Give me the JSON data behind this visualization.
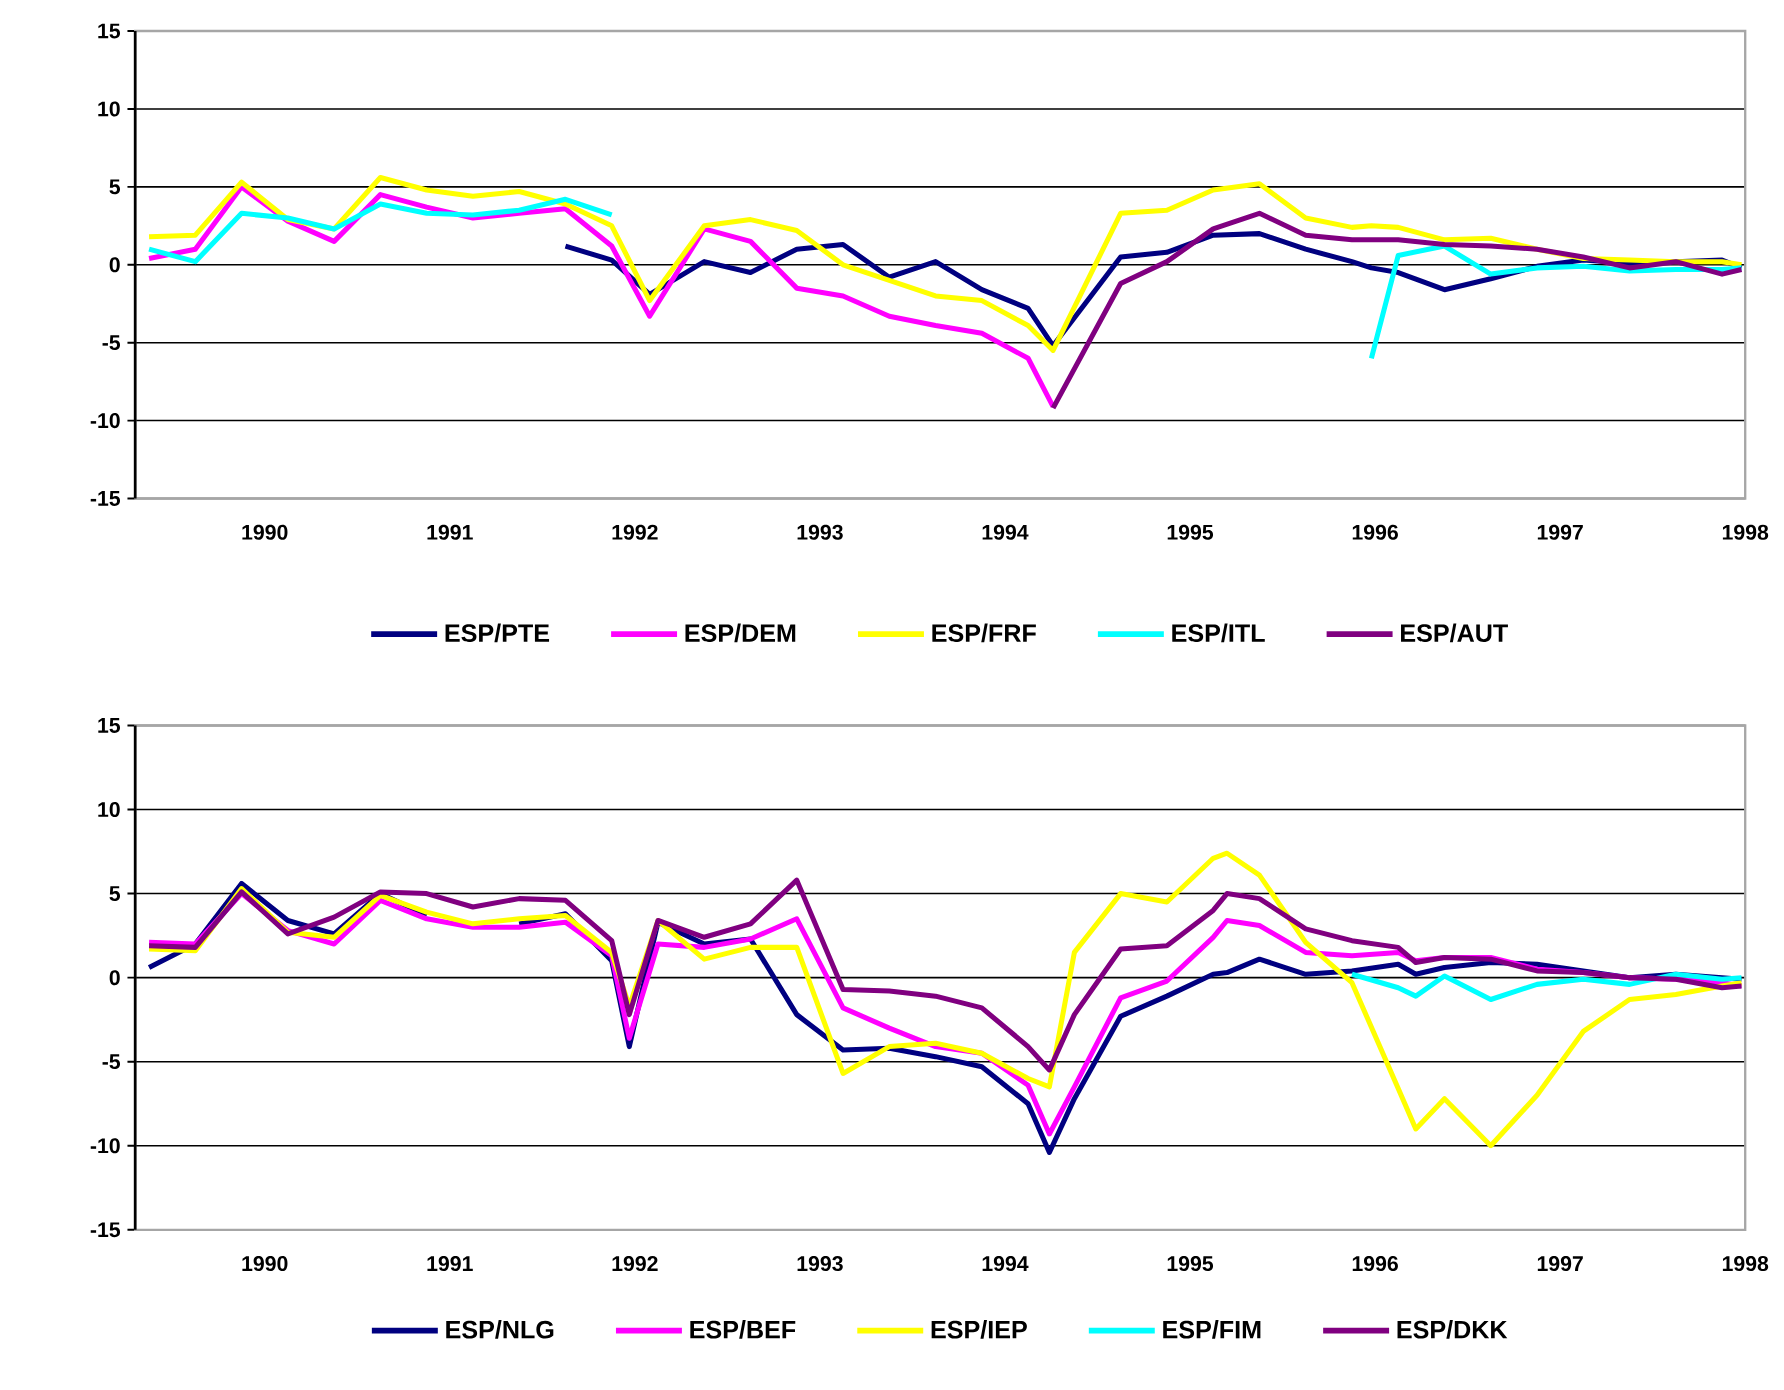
{
  "chart_data": [
    {
      "type": "line",
      "x": [
        1989.375,
        1989.625,
        1989.875,
        1990.125,
        1990.375,
        1990.625,
        1990.875,
        1991.125,
        1991.375,
        1991.625,
        1991.875,
        1992.08,
        1992.375,
        1992.625,
        1992.875,
        1993.125,
        1993.375,
        1993.625,
        1993.875,
        1994.125,
        1994.26,
        1994.625,
        1994.875,
        1995.125,
        1995.375,
        1995.625,
        1995.875,
        1995.98,
        1996.125,
        1996.375,
        1996.625,
        1996.875,
        1997.125,
        1997.375,
        1997.625,
        1997.875,
        1997.98
      ],
      "xlim": [
        1989.3,
        1998.0
      ],
      "ylim": [
        -15,
        15
      ],
      "xticks": [
        1990,
        1991,
        1992,
        1993,
        1994,
        1995,
        1996,
        1997,
        1998
      ],
      "yticks": [
        -15,
        -10,
        -5,
        0,
        5,
        10,
        15
      ],
      "grid": "y",
      "legend": "bottom",
      "series": [
        {
          "name": "ESP/PTE",
          "color": "#000080",
          "values": [
            null,
            null,
            null,
            null,
            null,
            null,
            null,
            null,
            null,
            1.2,
            0.3,
            -1.9,
            0.2,
            -0.5,
            1.0,
            1.3,
            -0.8,
            0.2,
            -1.6,
            -2.8,
            -5.2,
            0.5,
            0.8,
            1.9,
            2.0,
            1.0,
            0.2,
            -0.2,
            -0.5,
            -1.6,
            -0.9,
            -0.1,
            0.3,
            0.1,
            0.2,
            0.3,
            -0.2
          ]
        },
        {
          "name": "ESP/DEM",
          "color": "#ff00ff",
          "values": [
            0.4,
            1.0,
            5.0,
            2.8,
            1.5,
            4.5,
            3.7,
            3.0,
            3.3,
            3.6,
            1.2,
            -3.3,
            2.3,
            1.5,
            -1.5,
            -2.0,
            -3.3,
            -3.9,
            -4.4,
            -6.0,
            -9.1,
            null,
            null,
            null,
            null,
            null,
            null,
            null,
            null,
            null,
            null,
            null,
            null,
            null,
            null,
            null,
            null
          ]
        },
        {
          "name": "ESP/FRF",
          "color": "#ffff00",
          "values": [
            1.8,
            1.9,
            5.3,
            2.9,
            2.3,
            5.6,
            4.8,
            4.4,
            4.7,
            3.9,
            2.5,
            -2.3,
            2.5,
            2.9,
            2.2,
            0.0,
            -1.0,
            -2.0,
            -2.3,
            -3.9,
            -5.5,
            3.3,
            3.5,
            4.8,
            5.2,
            3.0,
            2.4,
            2.5,
            2.4,
            1.6,
            1.7,
            1.0,
            0.4,
            0.3,
            0.2,
            0.2,
            0.0
          ]
        },
        {
          "name": "ESP/ITL",
          "color": "#00ffff",
          "values": [
            1.0,
            0.2,
            3.3,
            3.0,
            2.3,
            3.9,
            3.3,
            3.2,
            3.5,
            4.2,
            3.2,
            null,
            null,
            null,
            null,
            null,
            null,
            null,
            null,
            null,
            null,
            null,
            null,
            null,
            null,
            null,
            null,
            -6.0,
            0.6,
            1.2,
            -0.6,
            -0.2,
            -0.1,
            -0.4,
            -0.3,
            -0.3,
            -0.2
          ]
        },
        {
          "name": "ESP/AUT",
          "color": "#800080",
          "values": [
            null,
            null,
            null,
            null,
            null,
            null,
            null,
            null,
            null,
            null,
            null,
            null,
            null,
            null,
            null,
            null,
            null,
            null,
            null,
            null,
            -9.2,
            -1.2,
            0.2,
            2.3,
            3.3,
            1.9,
            1.6,
            1.6,
            1.6,
            1.3,
            1.2,
            1.0,
            0.5,
            -0.2,
            0.2,
            -0.6,
            -0.3
          ]
        }
      ]
    },
    {
      "type": "line",
      "x": [
        1989.375,
        1989.625,
        1989.875,
        1990.125,
        1990.375,
        1990.625,
        1990.875,
        1991.125,
        1991.375,
        1991.625,
        1991.875,
        1991.97,
        1992.125,
        1992.375,
        1992.625,
        1992.875,
        1993.125,
        1993.375,
        1993.625,
        1993.875,
        1994.125,
        1994.24,
        1994.375,
        1994.625,
        1994.875,
        1995.125,
        1995.2,
        1995.375,
        1995.625,
        1995.875,
        1996.125,
        1996.22,
        1996.375,
        1996.625,
        1996.875,
        1997.125,
        1997.375,
        1997.625,
        1997.875,
        1997.98
      ],
      "xlim": [
        1989.3,
        1998.0
      ],
      "ylim": [
        -15,
        15
      ],
      "xticks": [
        1990,
        1991,
        1992,
        1993,
        1994,
        1995,
        1996,
        1997,
        1998
      ],
      "yticks": [
        -15,
        -10,
        -5,
        0,
        5,
        10,
        15
      ],
      "grid": "y",
      "legend": "bottom",
      "series": [
        {
          "name": "ESP/NLG",
          "color": "#000080",
          "values": [
            0.6,
            2.0,
            5.6,
            3.4,
            2.6,
            5.0,
            3.7,
            null,
            3.2,
            3.8,
            1.0,
            -4.1,
            3.3,
            2.0,
            2.3,
            -2.2,
            -4.3,
            -4.2,
            -4.7,
            -5.3,
            -7.5,
            -10.4,
            -7.2,
            -2.3,
            -1.1,
            0.2,
            0.3,
            1.1,
            0.2,
            0.4,
            0.8,
            0.2,
            0.6,
            0.9,
            0.8,
            0.4,
            0.0,
            0.2,
            0.0,
            -0.1
          ]
        },
        {
          "name": "ESP/BEF",
          "color": "#ff00ff",
          "values": [
            2.1,
            2.0,
            5.0,
            2.8,
            2.0,
            4.6,
            3.5,
            3.0,
            3.0,
            3.3,
            1.3,
            -3.6,
            2.0,
            1.8,
            2.3,
            3.5,
            -1.8,
            -3.0,
            -4.1,
            -4.5,
            -6.4,
            -9.3,
            -6.5,
            -1.2,
            -0.2,
            2.4,
            3.4,
            3.1,
            1.5,
            1.3,
            1.5,
            1.0,
            1.2,
            1.2,
            0.5,
            0.3,
            0.0,
            -0.1,
            -0.3,
            -0.5
          ]
        },
        {
          "name": "ESP/IEP",
          "color": "#ffff00",
          "values": [
            1.7,
            1.6,
            5.3,
            2.7,
            2.4,
            4.9,
            3.9,
            3.2,
            3.5,
            3.7,
            1.5,
            -1.7,
            3.4,
            1.1,
            1.8,
            1.8,
            -5.7,
            -4.1,
            -3.9,
            -4.5,
            -6.0,
            -6.5,
            1.5,
            5.0,
            4.5,
            7.1,
            7.4,
            6.1,
            2.1,
            -0.3,
            -6.6,
            -9.0,
            -7.2,
            -10.0,
            -7.0,
            -3.2,
            -1.3,
            -1.0,
            -0.5,
            -0.3
          ]
        },
        {
          "name": "ESP/FIM",
          "color": "#00ffff",
          "values": [
            null,
            null,
            null,
            null,
            null,
            null,
            null,
            null,
            null,
            null,
            null,
            null,
            null,
            null,
            null,
            null,
            null,
            null,
            null,
            null,
            null,
            null,
            null,
            null,
            null,
            null,
            null,
            null,
            null,
            0.2,
            -0.6,
            -1.1,
            0.1,
            -1.3,
            -0.4,
            -0.1,
            -0.4,
            0.2,
            -0.1,
            0.0
          ]
        },
        {
          "name": "ESP/DKK",
          "color": "#800080",
          "values": [
            1.9,
            1.8,
            5.1,
            2.6,
            3.6,
            5.1,
            5.0,
            4.2,
            4.7,
            4.6,
            2.2,
            -2.2,
            3.4,
            2.4,
            3.2,
            5.8,
            -0.7,
            -0.8,
            -1.1,
            -1.8,
            -4.1,
            -5.5,
            -2.2,
            1.7,
            1.9,
            4.0,
            5.0,
            4.7,
            2.9,
            2.2,
            1.8,
            0.9,
            1.2,
            1.1,
            0.4,
            0.3,
            0.0,
            -0.1,
            -0.6,
            -0.5
          ]
        }
      ]
    }
  ]
}
